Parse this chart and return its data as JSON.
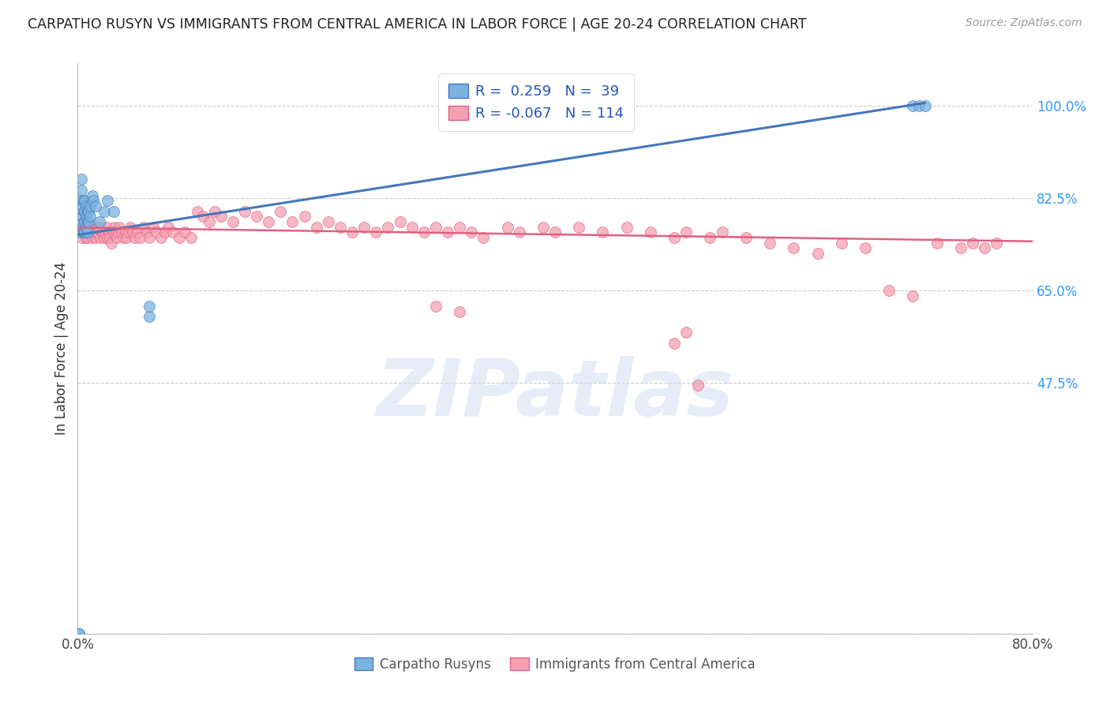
{
  "title": "CARPATHO RUSYN VS IMMIGRANTS FROM CENTRAL AMERICA IN LABOR FORCE | AGE 20-24 CORRELATION CHART",
  "source": "Source: ZipAtlas.com",
  "ylabel": "In Labor Force | Age 20-24",
  "xlim": [
    0.0,
    0.8
  ],
  "ylim": [
    0.0,
    1.08
  ],
  "ytick_positions": [
    0.0,
    0.475,
    0.65,
    0.825,
    1.0
  ],
  "ytick_labels": [
    "",
    "47.5%",
    "65.0%",
    "82.5%",
    "100.0%"
  ],
  "xtick_vals": [
    0.0,
    0.8
  ],
  "xtick_labels": [
    "0.0%",
    "80.0%"
  ],
  "grid_color": "#cccccc",
  "background_color": "#ffffff",
  "blue_color": "#7ab3e0",
  "pink_color": "#f4a0b0",
  "blue_line_color": "#4477bb",
  "pink_line_color": "#e06080",
  "legend_blue_R": "0.259",
  "legend_blue_N": "39",
  "legend_pink_R": "-0.067",
  "legend_pink_N": "114",
  "legend_label_blue": "Carpatho Rusyns",
  "legend_label_pink": "Immigrants from Central America",
  "blue_scatter_x": [
    0.001,
    0.001,
    0.002,
    0.003,
    0.003,
    0.003,
    0.004,
    0.004,
    0.004,
    0.005,
    0.005,
    0.005,
    0.005,
    0.006,
    0.006,
    0.006,
    0.006,
    0.007,
    0.007,
    0.007,
    0.008,
    0.008,
    0.008,
    0.009,
    0.009,
    0.01,
    0.01,
    0.012,
    0.013,
    0.015,
    0.018,
    0.022,
    0.025,
    0.03,
    0.06,
    0.06,
    0.7,
    0.705,
    0.71
  ],
  "blue_scatter_y": [
    0.0,
    0.0,
    0.76,
    0.82,
    0.84,
    0.86,
    0.77,
    0.79,
    0.81,
    0.76,
    0.78,
    0.8,
    0.82,
    0.76,
    0.78,
    0.8,
    0.82,
    0.77,
    0.79,
    0.81,
    0.76,
    0.78,
    0.8,
    0.78,
    0.8,
    0.79,
    0.81,
    0.83,
    0.82,
    0.81,
    0.78,
    0.8,
    0.82,
    0.8,
    0.6,
    0.62,
    1.0,
    1.0,
    1.0
  ],
  "pink_scatter_x": [
    0.003,
    0.004,
    0.005,
    0.006,
    0.007,
    0.008,
    0.008,
    0.009,
    0.01,
    0.011,
    0.012,
    0.013,
    0.014,
    0.015,
    0.015,
    0.016,
    0.017,
    0.018,
    0.019,
    0.02,
    0.021,
    0.022,
    0.023,
    0.024,
    0.025,
    0.026,
    0.027,
    0.028,
    0.03,
    0.031,
    0.032,
    0.033,
    0.034,
    0.035,
    0.037,
    0.038,
    0.04,
    0.041,
    0.043,
    0.044,
    0.046,
    0.048,
    0.05,
    0.052,
    0.055,
    0.058,
    0.06,
    0.063,
    0.066,
    0.07,
    0.073,
    0.076,
    0.08,
    0.085,
    0.09,
    0.095,
    0.1,
    0.105,
    0.11,
    0.115,
    0.12,
    0.13,
    0.14,
    0.15,
    0.16,
    0.17,
    0.18,
    0.19,
    0.2,
    0.21,
    0.22,
    0.23,
    0.24,
    0.25,
    0.26,
    0.27,
    0.28,
    0.29,
    0.3,
    0.31,
    0.32,
    0.33,
    0.34,
    0.36,
    0.37,
    0.39,
    0.4,
    0.42,
    0.44,
    0.46,
    0.48,
    0.5,
    0.51,
    0.53,
    0.54,
    0.56,
    0.58,
    0.6,
    0.62,
    0.64,
    0.66,
    0.68,
    0.7,
    0.72,
    0.74,
    0.75,
    0.76,
    0.77,
    0.5,
    0.51,
    0.52,
    0.3,
    0.32
  ],
  "pink_scatter_y": [
    0.76,
    0.75,
    0.77,
    0.76,
    0.75,
    0.77,
    0.75,
    0.76,
    0.77,
    0.76,
    0.75,
    0.76,
    0.77,
    0.76,
    0.75,
    0.76,
    0.76,
    0.77,
    0.75,
    0.76,
    0.76,
    0.75,
    0.76,
    0.77,
    0.75,
    0.76,
    0.75,
    0.74,
    0.76,
    0.77,
    0.76,
    0.75,
    0.76,
    0.77,
    0.76,
    0.75,
    0.76,
    0.75,
    0.76,
    0.77,
    0.76,
    0.75,
    0.76,
    0.75,
    0.77,
    0.76,
    0.75,
    0.77,
    0.76,
    0.75,
    0.76,
    0.77,
    0.76,
    0.75,
    0.76,
    0.75,
    0.8,
    0.79,
    0.78,
    0.8,
    0.79,
    0.78,
    0.8,
    0.79,
    0.78,
    0.8,
    0.78,
    0.79,
    0.77,
    0.78,
    0.77,
    0.76,
    0.77,
    0.76,
    0.77,
    0.78,
    0.77,
    0.76,
    0.77,
    0.76,
    0.77,
    0.76,
    0.75,
    0.77,
    0.76,
    0.77,
    0.76,
    0.77,
    0.76,
    0.77,
    0.76,
    0.75,
    0.76,
    0.75,
    0.76,
    0.75,
    0.74,
    0.73,
    0.72,
    0.74,
    0.73,
    0.65,
    0.64,
    0.74,
    0.73,
    0.74,
    0.73,
    0.74,
    0.55,
    0.57,
    0.47,
    0.62,
    0.61
  ],
  "blue_trend_x": [
    0.0,
    0.71
  ],
  "blue_trend_y": [
    0.755,
    1.005
  ],
  "pink_trend_x": [
    0.0,
    0.8
  ],
  "pink_trend_y": [
    0.769,
    0.743
  ],
  "watermark": "ZIPatlas",
  "watermark_color": "#c8d8f0"
}
